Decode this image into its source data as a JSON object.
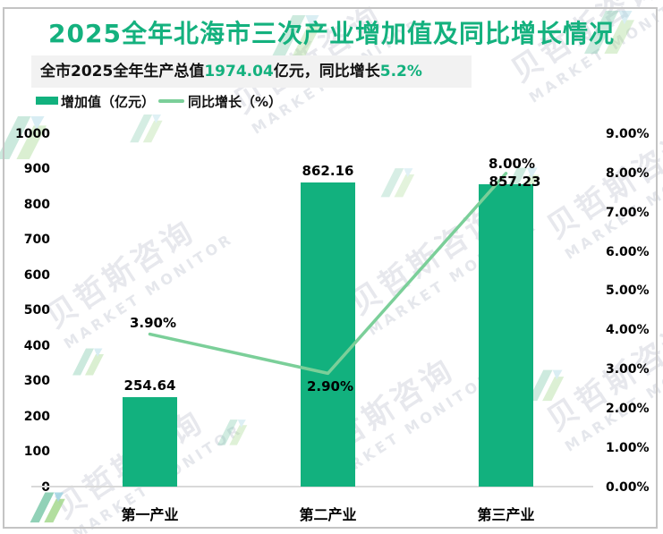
{
  "title": "2025全年北海市三次产业增加值及同比增长情况",
  "subtitle": {
    "prefix": "全市2025全年生产总值",
    "gdp_value": "1974.04",
    "middle": "亿元，同比增长",
    "growth_value": "5.2%"
  },
  "legend": {
    "bar_label": "增加值（亿元）",
    "line_label": "同比增长（%）"
  },
  "watermark": {
    "cn": "贝哲斯咨询",
    "en": "MARKET MONITOR"
  },
  "colors": {
    "accent": "#14b17e",
    "bar": "#12b17e",
    "line": "#7bcf99",
    "subtitle_bg": "#f2f2f2",
    "axis_line": "#d9d9d9",
    "border": "#c4c4c4"
  },
  "chart_data": {
    "type": "combo",
    "categories": [
      "第一产业",
      "第二产业",
      "第三产业"
    ],
    "series": [
      {
        "name": "增加值（亿元）",
        "type": "bar",
        "axis": "left",
        "values": [
          254.64,
          862.16,
          857.23
        ],
        "labels": [
          "254.64",
          "862.16",
          "857.23"
        ]
      },
      {
        "name": "同比增长（%）",
        "type": "line",
        "axis": "right",
        "values": [
          3.9,
          2.9,
          8.0
        ],
        "labels": [
          "3.90%",
          "2.90%",
          "8.00%"
        ]
      }
    ],
    "left_axis": {
      "min": 0,
      "max": 1000,
      "step": 100,
      "ticks": [
        "1000",
        "900",
        "800",
        "700",
        "600",
        "500",
        "400",
        "300",
        "200",
        "100",
        "0"
      ]
    },
    "right_axis": {
      "min": 0,
      "max": 9,
      "step": 1,
      "ticks": [
        "9.00%",
        "8.00%",
        "7.00%",
        "6.00%",
        "5.00%",
        "4.00%",
        "3.00%",
        "2.00%",
        "1.00%",
        "0.00%"
      ]
    },
    "grid": false,
    "legend_position": "top-left"
  }
}
